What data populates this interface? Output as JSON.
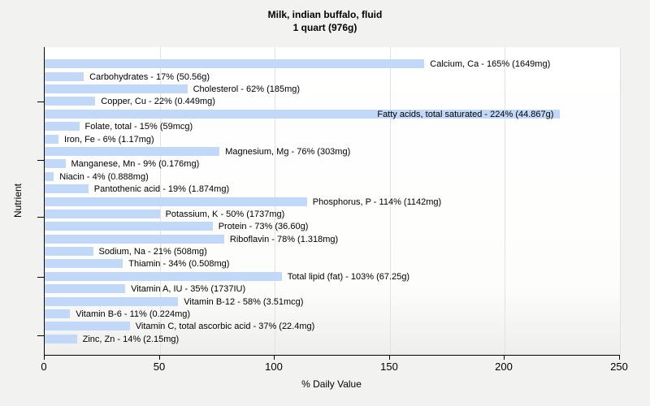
{
  "chart_data": {
    "type": "bar",
    "orientation": "horizontal",
    "title": "Milk, indian buffalo, fluid",
    "subtitle": "1 quart (976g)",
    "xlabel": "% Daily Value",
    "ylabel": "Nutrient",
    "xlim": [
      0,
      250
    ],
    "xticks": [
      0,
      50,
      100,
      150,
      200,
      250
    ],
    "grid": "vertical",
    "legend": "none",
    "colors": {
      "bar": "#c1d8f8",
      "gridline": "#e2e2e0",
      "axis": "#000000",
      "text": "#000000",
      "page_bg": "#f2f2f0",
      "plot_bg": "#ffffff"
    },
    "items": [
      {
        "nutrient": "Calcium, Ca",
        "percent_dv": 165,
        "amount": "1649mg",
        "label": "Calcium, Ca - 165% (1649mg)"
      },
      {
        "nutrient": "Carbohydrates",
        "percent_dv": 17,
        "amount": "50.56g",
        "label": "Carbohydrates - 17% (50.56g)"
      },
      {
        "nutrient": "Cholesterol",
        "percent_dv": 62,
        "amount": "185mg",
        "label": "Cholesterol - 62% (185mg)"
      },
      {
        "nutrient": "Copper, Cu",
        "percent_dv": 22,
        "amount": "0.449mg",
        "label": "Copper, Cu - 22% (0.449mg)"
      },
      {
        "nutrient": "Fatty acids, total saturated",
        "percent_dv": 224,
        "amount": "44.867g",
        "label": "Fatty acids, total saturated - 224% (44.867g)",
        "label_inside": true
      },
      {
        "nutrient": "Folate, total",
        "percent_dv": 15,
        "amount": "59mcg",
        "label": "Folate, total - 15% (59mcg)"
      },
      {
        "nutrient": "Iron, Fe",
        "percent_dv": 6,
        "amount": "1.17mg",
        "label": "Iron, Fe - 6% (1.17mg)"
      },
      {
        "nutrient": "Magnesium, Mg",
        "percent_dv": 76,
        "amount": "303mg",
        "label": "Magnesium, Mg - 76% (303mg)"
      },
      {
        "nutrient": "Manganese, Mn",
        "percent_dv": 9,
        "amount": "0.176mg",
        "label": "Manganese, Mn - 9% (0.176mg)"
      },
      {
        "nutrient": "Niacin",
        "percent_dv": 4,
        "amount": "0.888mg",
        "label": "Niacin - 4% (0.888mg)"
      },
      {
        "nutrient": "Pantothenic acid",
        "percent_dv": 19,
        "amount": "1.874mg",
        "label": "Pantothenic acid - 19% (1.874mg)"
      },
      {
        "nutrient": "Phosphorus, P",
        "percent_dv": 114,
        "amount": "1142mg",
        "label": "Phosphorus, P - 114% (1142mg)"
      },
      {
        "nutrient": "Potassium, K",
        "percent_dv": 50,
        "amount": "1737mg",
        "label": "Potassium, K - 50% (1737mg)"
      },
      {
        "nutrient": "Protein",
        "percent_dv": 73,
        "amount": "36.60g",
        "label": "Protein - 73% (36.60g)"
      },
      {
        "nutrient": "Riboflavin",
        "percent_dv": 78,
        "amount": "1.318mg",
        "label": "Riboflavin - 78% (1.318mg)"
      },
      {
        "nutrient": "Sodium, Na",
        "percent_dv": 21,
        "amount": "508mg",
        "label": "Sodium, Na - 21% (508mg)"
      },
      {
        "nutrient": "Thiamin",
        "percent_dv": 34,
        "amount": "0.508mg",
        "label": "Thiamin - 34% (0.508mg)"
      },
      {
        "nutrient": "Total lipid (fat)",
        "percent_dv": 103,
        "amount": "67.25g",
        "label": "Total lipid (fat) - 103% (67.25g)"
      },
      {
        "nutrient": "Vitamin A, IU",
        "percent_dv": 35,
        "amount": "1737IU",
        "label": "Vitamin A, IU - 35% (1737IU)"
      },
      {
        "nutrient": "Vitamin B-12",
        "percent_dv": 58,
        "amount": "3.51mcg",
        "label": "Vitamin B-12 - 58% (3.51mcg)"
      },
      {
        "nutrient": "Vitamin B-6",
        "percent_dv": 11,
        "amount": "0.224mg",
        "label": "Vitamin B-6 - 11% (0.224mg)"
      },
      {
        "nutrient": "Vitamin C, total ascorbic acid",
        "percent_dv": 37,
        "amount": "22.4mg",
        "label": "Vitamin C, total ascorbic acid - 37% (22.4mg)"
      },
      {
        "nutrient": "Zinc, Zn",
        "percent_dv": 14,
        "amount": "2.15mg",
        "label": "Zinc, Zn - 14% (2.15mg)"
      }
    ]
  }
}
